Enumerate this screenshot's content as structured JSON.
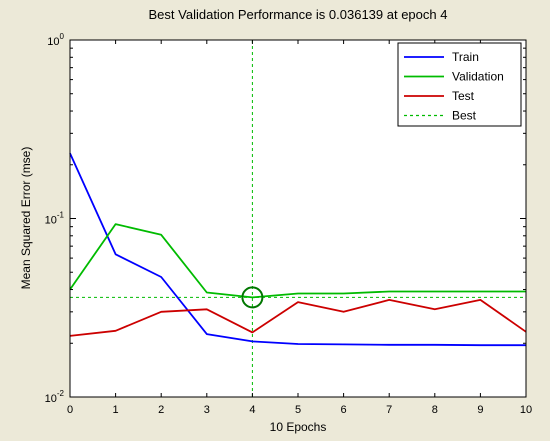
{
  "chart_data": {
    "type": "line",
    "title": "Best Validation Performance is 0.036139 at epoch 4",
    "xlabel": "10 Epochs",
    "ylabel": "Mean Squared Error  (mse)",
    "xlim": [
      0,
      10
    ],
    "ylim": [
      0.01,
      1
    ],
    "yscale": "log",
    "grid": false,
    "legend_position": "top-right",
    "x_ticks": [
      "0",
      "1",
      "2",
      "3",
      "4",
      "5",
      "6",
      "7",
      "8",
      "9",
      "10"
    ],
    "y_ticks": [
      {
        "value": 1,
        "base": "10",
        "exp": "0"
      },
      {
        "value": 0.1,
        "base": "10",
        "exp": "-1"
      },
      {
        "value": 0.01,
        "base": "10",
        "exp": "-2"
      }
    ],
    "x": [
      0,
      1,
      2,
      3,
      4,
      5,
      6,
      7,
      8,
      9,
      10
    ],
    "series": [
      {
        "name": "Train",
        "color": "#0000ff",
        "dash": false,
        "values": [
          0.232,
          0.063,
          0.047,
          0.0225,
          0.0205,
          0.0198,
          0.0197,
          0.0196,
          0.0196,
          0.0195,
          0.0195
        ]
      },
      {
        "name": "Validation",
        "color": "#00bb00",
        "dash": false,
        "values": [
          0.04,
          0.093,
          0.081,
          0.0385,
          0.036139,
          0.038,
          0.038,
          0.039,
          0.039,
          0.039,
          0.039
        ]
      },
      {
        "name": "Test",
        "color": "#cc0000",
        "dash": false,
        "values": [
          0.022,
          0.0235,
          0.03,
          0.031,
          0.023,
          0.034,
          0.03,
          0.035,
          0.031,
          0.035,
          0.0232
        ]
      }
    ],
    "best": {
      "name": "Best",
      "color": "#00bb00",
      "epoch": 4,
      "value": 0.036139
    }
  }
}
